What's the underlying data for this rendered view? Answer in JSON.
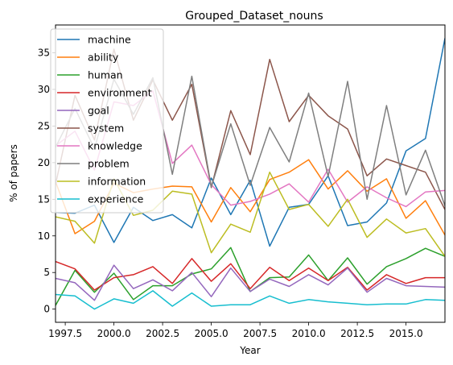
{
  "chart_data": {
    "type": "line",
    "title": "Grouped_Dataset_nouns",
    "xlabel": "Year",
    "ylabel": "% of papers",
    "xlim": [
      1997,
      2017
    ],
    "ylim": [
      -1.8,
      38.8
    ],
    "xticks": [
      1997.5,
      2000,
      2002.5,
      2005,
      2007.5,
      2010,
      2012.5,
      2015
    ],
    "xtick_labels": [
      "1997.5",
      "2000.0",
      "2002.5",
      "2005.0",
      "2007.5",
      "2010.0",
      "2012.5",
      "2015.0"
    ],
    "yticks": [
      0,
      5,
      10,
      15,
      20,
      25,
      30,
      35
    ],
    "ytick_labels": [
      "0",
      "5",
      "10",
      "15",
      "20",
      "25",
      "30",
      "35"
    ],
    "grid": false,
    "legend_position": "top-left",
    "x": [
      1997,
      1998,
      1999,
      2000,
      2001,
      2002,
      2003,
      2004,
      2005,
      2006,
      2007,
      2008,
      2009,
      2010,
      2011,
      2012,
      2013,
      2014,
      2015,
      2016,
      2017
    ],
    "series": [
      {
        "name": "machine",
        "color": "#1f77b4",
        "values": [
          13.2,
          13.1,
          14.2,
          9.1,
          13.9,
          12.1,
          12.9,
          11.1,
          17.9,
          12.9,
          17.6,
          8.6,
          13.9,
          14.3,
          18.2,
          11.4,
          11.9,
          14.5,
          21.6,
          23.3,
          37.0
        ]
      },
      {
        "name": "ability",
        "color": "#ff7f0e",
        "values": [
          17.4,
          10.3,
          12.0,
          17.2,
          15.9,
          16.4,
          16.8,
          16.7,
          11.9,
          16.6,
          13.3,
          17.7,
          18.7,
          20.4,
          16.4,
          18.9,
          16.1,
          17.8,
          12.4,
          14.8,
          10.1
        ]
      },
      {
        "name": "human",
        "color": "#2ca02c",
        "values": [
          0.5,
          5.3,
          2.3,
          4.9,
          1.3,
          3.2,
          3.2,
          4.8,
          5.5,
          8.4,
          2.4,
          4.3,
          4.4,
          7.4,
          3.9,
          7.0,
          3.4,
          5.8,
          6.9,
          8.3,
          7.2
        ]
      },
      {
        "name": "environment",
        "color": "#d62728",
        "values": [
          6.5,
          5.5,
          2.6,
          4.3,
          4.7,
          5.8,
          3.5,
          6.9,
          3.8,
          6.2,
          2.8,
          5.7,
          3.9,
          5.6,
          3.9,
          5.7,
          2.6,
          4.7,
          3.5,
          4.3,
          4.3
        ]
      },
      {
        "name": "goal",
        "color": "#9467bd",
        "values": [
          4.2,
          3.6,
          1.2,
          6.0,
          2.8,
          4.0,
          2.5,
          5.0,
          1.7,
          5.6,
          2.4,
          4.1,
          3.1,
          4.7,
          3.3,
          5.6,
          2.3,
          4.2,
          3.2,
          3.1,
          3.0
        ]
      },
      {
        "name": "system",
        "color": "#8c564b",
        "values": [
          17.0,
          29.2,
          23.1,
          35.5,
          25.8,
          31.3,
          25.8,
          30.7,
          16.6,
          27.1,
          21.1,
          34.1,
          25.6,
          29.2,
          26.4,
          24.6,
          18.2,
          20.5,
          19.6,
          18.7,
          13.6
        ]
      },
      {
        "name": "knowledge",
        "color": "#e377c2",
        "values": [
          22.3,
          24.3,
          19.0,
          28.3,
          27.8,
          29.8,
          19.9,
          22.4,
          17.0,
          14.2,
          14.7,
          15.7,
          17.1,
          14.6,
          19.1,
          14.6,
          16.7,
          15.2,
          14.0,
          16.0,
          16.2
        ]
      },
      {
        "name": "problem",
        "color": "#7f7f7f",
        "values": [
          22.1,
          27.4,
          21.9,
          31.4,
          26.6,
          31.6,
          18.4,
          31.8,
          16.7,
          25.3,
          16.9,
          24.8,
          20.1,
          29.5,
          18.1,
          31.1,
          15.0,
          27.8,
          15.6,
          21.7,
          14.1
        ]
      },
      {
        "name": "information",
        "color": "#bcbd22",
        "values": [
          12.6,
          12.0,
          9.0,
          17.8,
          12.8,
          13.5,
          16.1,
          15.7,
          7.7,
          11.6,
          10.5,
          18.7,
          13.6,
          14.3,
          11.3,
          15.0,
          9.8,
          12.3,
          10.4,
          11.0,
          7.2
        ]
      },
      {
        "name": "experience",
        "color": "#17becf",
        "values": [
          2.0,
          1.8,
          0.0,
          1.4,
          0.8,
          2.5,
          0.4,
          2.2,
          0.4,
          0.6,
          0.6,
          1.8,
          0.8,
          1.3,
          1.0,
          0.8,
          0.6,
          0.7,
          0.7,
          1.3,
          1.2
        ]
      }
    ]
  }
}
